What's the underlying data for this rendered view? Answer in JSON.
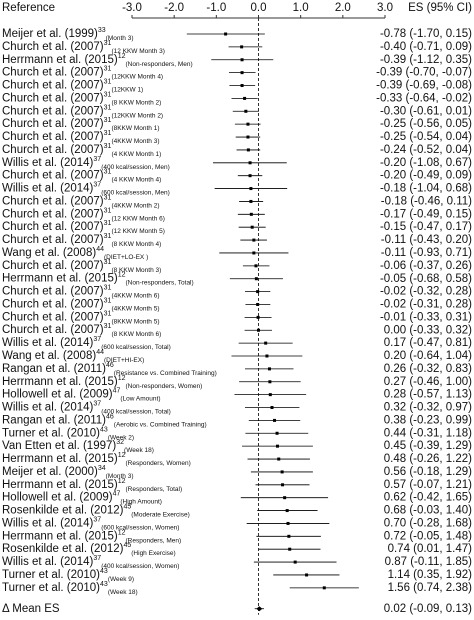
{
  "chart_data": {
    "type": "forest",
    "headers": {
      "reference": "Reference",
      "estimate": "ES (95% CI)"
    },
    "xlim": [
      -3,
      3
    ],
    "xticks": [
      {
        "value": -3,
        "label": "-3.0"
      },
      {
        "value": -2,
        "label": "-2.0"
      },
      {
        "value": -1,
        "label": "-1.0"
      },
      {
        "value": 0,
        "label": "0.0"
      },
      {
        "value": 1,
        "label": "1.0"
      },
      {
        "value": 2,
        "label": "2.0"
      },
      {
        "value": 3,
        "label": "3.0"
      }
    ],
    "reference_line": true,
    "color": "#000000",
    "categories": [
      "Meijer et al. (1999)",
      "Church et al. (2007)",
      "Herrmann et al. (2015)",
      "Church et al. (2007)",
      "Church et al. (2007)",
      "Church et al. (2007)",
      "Church et al. (2007)",
      "Church et al. (2007)",
      "Church et al. (2007)",
      "Church et al. (2007)",
      "Willis et al. (2014)",
      "Church et al. (2007)",
      "Willis et al. (2014)",
      "Church et al. (2007)",
      "Church et al. (2007)",
      "Church et al. (2007)",
      "Church et al. (2007)",
      "Wang et al. (2008)",
      "Church et al. (2007)",
      "Herrmann et al. (2015)",
      "Church et al. (2007)",
      "Church et al. (2007)",
      "Church et al. (2007)",
      "Church et al. (2007)",
      "Willis et al. (2014)",
      "Wang et al. (2008)",
      "Rangan et al. (2011)",
      "Herrmann et al. (2015)",
      "Hollowell et al. (2009)",
      "Willis et al. (2014)",
      "Rangan et al. (2011)",
      "Turner et al. (2010)",
      "Van Etten et al. (1997)",
      "Herrmann et al. (2015)",
      "Meijer et al. (2000)",
      "Herrmann et al. (2015)",
      "Hollowell et al. (2009)",
      "Rosenkilde et al. (2012)",
      "Willis et al. (2014)",
      "Herrmann et al. (2015)",
      "Rosenkilde et al. (2012)",
      "Willis et al. (2014)",
      "Turner et al. (2010)",
      "Turner et al. (2010)"
    ],
    "superscripts": [
      33,
      31,
      12,
      31,
      31,
      31,
      31,
      31,
      31,
      31,
      37,
      31,
      37,
      31,
      31,
      31,
      31,
      44,
      31,
      12,
      31,
      31,
      31,
      31,
      37,
      44,
      46,
      12,
      47,
      37,
      46,
      43,
      32,
      12,
      34,
      12,
      47,
      45,
      37,
      12,
      45,
      37,
      43,
      43
    ],
    "subscripts": [
      "(Month 3)",
      "(12 KKW Month 3)",
      "(Non-responders, Men)",
      "(12KKW Month 4)",
      "(12KKW 1)",
      "(8 KKW Month 2)",
      "(12KKW Month 2)",
      "(8KKW Month 1)",
      "(4KKW Month 3)",
      "(4 KKW Month 1)",
      "(400 kcal/session, Men)",
      "(4 KKW Month 4)",
      "(600 kcal/session, Men)",
      "(4KKW Month 2)",
      "(12 KKW Month 6)",
      "(12 KKW Month 5)",
      "(8 KKW Month 4)",
      "(DIET+LO-EX )",
      "(8 KKW Month 3)",
      "(Non-responders, Total)",
      "(4KKW Month 6)",
      "(4KKW Month 5)",
      "(8KKW Month 5)",
      "(8 KKW Month 6)",
      "(600 kcal/session, Total)",
      "(DIET+HI-EX)",
      "(Resistance vs. Combined Training)",
      "(Non-responders, Women)",
      "(Low Amount)",
      "(400 kcal/session, Total)",
      "(Aerobic vs. Combined Training)",
      "(Week 2)",
      "(Week 18)",
      "(Responders, Women)",
      "(Month 3)",
      "(Responders, Total)",
      "(High Amount)",
      "(Moderate Exercise)",
      "(600 kcal/session, Women)",
      "(Responders, Men)",
      "(High Exercise)",
      "(400 kcal/session, Women)",
      "(Week 9)",
      "(Week 18)"
    ],
    "values": [
      -0.78,
      -0.4,
      -0.39,
      -0.39,
      -0.39,
      -0.33,
      -0.3,
      -0.25,
      -0.25,
      -0.24,
      -0.2,
      -0.2,
      -0.18,
      -0.18,
      -0.17,
      -0.15,
      -0.11,
      -0.11,
      -0.06,
      -0.05,
      -0.02,
      -0.02,
      -0.01,
      0.0,
      0.17,
      0.2,
      0.26,
      0.27,
      0.28,
      0.32,
      0.38,
      0.44,
      0.45,
      0.48,
      0.56,
      0.57,
      0.62,
      0.68,
      0.7,
      0.72,
      0.74,
      0.87,
      1.14,
      1.56
    ],
    "lower": [
      -1.7,
      -0.71,
      -1.12,
      -0.7,
      -0.69,
      -0.64,
      -0.61,
      -0.56,
      -0.54,
      -0.52,
      -1.08,
      -0.49,
      -1.04,
      -0.46,
      -0.49,
      -0.47,
      -0.43,
      -0.93,
      -0.37,
      -0.68,
      -0.32,
      -0.31,
      -0.33,
      -0.33,
      -0.47,
      -0.64,
      -0.32,
      -0.46,
      -0.57,
      -0.32,
      -0.23,
      -0.31,
      -0.39,
      -0.26,
      -0.18,
      -0.07,
      -0.42,
      -0.03,
      -0.28,
      -0.05,
      0.01,
      -0.11,
      0.35,
      0.74
    ],
    "upper": [
      0.15,
      0.09,
      0.35,
      -0.07,
      -0.08,
      -0.02,
      0.01,
      0.05,
      0.04,
      0.04,
      0.67,
      0.09,
      0.68,
      0.11,
      0.15,
      0.17,
      0.2,
      0.71,
      0.26,
      0.58,
      0.28,
      0.28,
      0.31,
      0.32,
      0.81,
      1.04,
      0.83,
      1.0,
      1.13,
      0.97,
      0.99,
      1.18,
      1.29,
      1.22,
      1.29,
      1.21,
      1.65,
      1.4,
      1.68,
      1.48,
      1.47,
      1.85,
      1.92,
      2.38
    ],
    "value_labels": [
      "-0.78 (-1.70, 0.15)",
      "-0.40 (-0.71, 0.09)",
      "-0.39 (-1.12, 0.35)",
      "-0.39 (-0.70, -0.07)",
      "-0.39 (-0.69, -0.08)",
      "-0.33 (-0.64, -0.02)",
      "-0.30 (-0.61, 0.01)",
      "-0.25 (-0.56, 0.05)",
      "-0.25 (-0.54, 0.04)",
      "-0.24 (-0.52, 0.04)",
      "-0.20 (-1.08, 0.67)",
      "-0.20 (-0.49, 0.09)",
      "-0.18 (-1.04, 0.68)",
      "-0.18 (-0.46, 0.11)",
      "-0.17 (-0.49, 0.15)",
      "-0.15 (-0.47, 0.17)",
      "-0.11 (-0.43, 0.20)",
      "-0.11 (-0.93, 0.71)",
      "-0.06 (-0.37, 0.26)",
      "-0.05 (-0.68, 0.58)",
      "-0.02 (-0.32, 0.28)",
      "-0.02 (-0.31, 0.28)",
      "-0.01 (-0.33, 0.31)",
      "0.00 (-0.33, 0.32)",
      "0.17 (-0.47, 0.81)",
      "0.20 (-0.64, 1.04)",
      "0.26 (-0.32, 0.83)",
      "0.27 (-0.46, 1.00)",
      "0.28 (-0.57, 1.13)",
      "0.32 (-0.32, 0.97)",
      "0.38 (-0.23, 0.99)",
      "0.44 (-0.31, 1.18)",
      "0.45 (-0.39, 1.29)",
      "0.48 (-0.26, 1.22)",
      "0.56 (-0.18, 1.29)",
      "0.57 (-0.07, 1.21)",
      "0.62 (-0.42, 1.65)",
      "0.68 (-0.03, 1.40)",
      "0.70 (-0.28, 1.68)",
      "0.72 (-0.05, 1.48)",
      "0.74 (0.01, 1.47)",
      "0.87 (-0.11, 1.85)",
      "1.14 (0.35, 1.92)",
      "1.56 (0.74, 2.38)"
    ],
    "summary": {
      "label": "Δ Mean ES",
      "value": 0.02,
      "lower": -0.09,
      "upper": 0.13,
      "value_label": "0.02 (-0.09, 0.13)"
    }
  }
}
